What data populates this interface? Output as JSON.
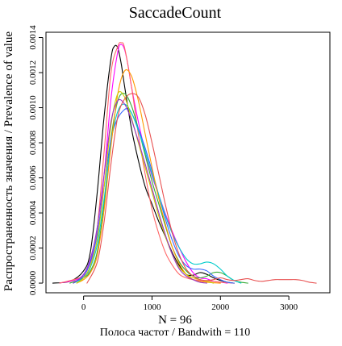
{
  "chart_data": {
    "type": "line",
    "title": "SaccadeCount",
    "xlabel": "N = 96",
    "xlabel_sub": "Полоса частот / Bandwith = 110",
    "ylabel": "Распространенность значения / Prevalence of value",
    "xlim": [
      -550,
      3600
    ],
    "ylim": [
      -5.5e-05,
      0.00143
    ],
    "x_ticks": [
      0,
      1000,
      2000,
      3000
    ],
    "x_tick_labels": [
      "0",
      "1000",
      "2000",
      "3000"
    ],
    "y_ticks": [
      0.0,
      0.0002,
      0.0004,
      0.0006,
      0.0008,
      0.001,
      0.0012,
      0.0014
    ],
    "y_tick_labels": [
      "0.0000",
      "0.0002",
      "0.0004",
      "0.0006",
      "0.0008",
      "0.0010",
      "0.0012",
      "0.0014"
    ],
    "grid": false,
    "legend": "none",
    "series": [
      {
        "color": "#000000",
        "x": [
          -450,
          -200,
          0,
          100,
          200,
          300,
          400,
          450,
          500,
          550,
          600,
          700,
          800,
          900,
          1000,
          1100,
          1200,
          1300,
          1400,
          1500,
          1600,
          1700,
          1800,
          1900,
          2000,
          2100,
          2200
        ],
        "y": [
          0,
          1e-05,
          7e-05,
          0.00018,
          0.00052,
          0.00095,
          0.00128,
          0.00135,
          0.00134,
          0.00125,
          0.00112,
          0.00088,
          0.0007,
          0.00055,
          0.00045,
          0.00035,
          0.00026,
          0.00017,
          0.0001,
          5e-05,
          4.5e-05,
          6e-05,
          5e-05,
          3e-05,
          1.5e-05,
          5e-06,
          0
        ]
      },
      {
        "color": "#ff00ff",
        "x": [
          -350,
          0,
          200,
          300,
          400,
          500,
          550,
          600,
          650,
          700,
          800,
          900,
          1000,
          1100,
          1200,
          1300,
          1400,
          1500,
          1600,
          1700,
          1800,
          1900,
          2000,
          2100
        ],
        "y": [
          0,
          5e-05,
          0.00028,
          0.00062,
          0.00105,
          0.00132,
          0.00136,
          0.00133,
          0.00124,
          0.00112,
          0.00092,
          0.00075,
          0.00061,
          0.0005,
          0.00039,
          0.00029,
          0.0002,
          0.00012,
          6e-05,
          3e-05,
          2.5e-05,
          1e-05,
          5e-06,
          0
        ]
      },
      {
        "color": "#ff6666",
        "x": [
          -350,
          0,
          100,
          200,
          300,
          400,
          500,
          550,
          600,
          700,
          800,
          900,
          1000,
          1100,
          1200,
          1300,
          1400,
          1500,
          1600,
          1700,
          1800,
          1900,
          2000,
          2100,
          2200
        ],
        "y": [
          0,
          4e-05,
          0.0001,
          0.00032,
          0.00075,
          0.0012,
          0.00135,
          0.00137,
          0.00134,
          0.00112,
          0.00085,
          0.00062,
          0.00042,
          0.00028,
          0.00017,
          0.0001,
          5e-05,
          3e-05,
          2e-05,
          1.5e-05,
          1e-05,
          1e-05,
          5e-06,
          2e-06,
          0
        ]
      },
      {
        "color": "#33aa33",
        "x": [
          -200,
          0,
          100,
          200,
          300,
          400,
          500,
          600,
          700,
          800,
          900,
          1000,
          1100,
          1200,
          1300,
          1400,
          1500,
          1600,
          1700,
          1800,
          1900,
          2000,
          2100,
          2200,
          2300,
          2400
        ],
        "y": [
          0,
          3e-05,
          7e-05,
          0.00018,
          0.00045,
          0.00082,
          0.00104,
          0.00108,
          0.00101,
          0.00088,
          0.00073,
          0.00058,
          0.00045,
          0.00032,
          0.0002,
          0.00012,
          7e-05,
          4e-05,
          3e-05,
          4e-05,
          6e-05,
          6e-05,
          4e-05,
          1.5e-05,
          5e-06,
          0
        ]
      },
      {
        "color": "#3366ff",
        "x": [
          -150,
          0,
          100,
          200,
          300,
          400,
          500,
          600,
          650,
          700,
          800,
          900,
          1000,
          1100,
          1200,
          1300,
          1400,
          1500,
          1600,
          1700,
          1800,
          1900,
          2000,
          2100,
          2200
        ],
        "y": [
          0,
          4e-05,
          0.00012,
          0.00028,
          0.00055,
          0.00082,
          0.00094,
          0.00099,
          0.00099,
          0.00097,
          0.00088,
          0.00077,
          0.00064,
          0.0005,
          0.00036,
          0.00024,
          0.00015,
          0.0001,
          8e-05,
          8e-05,
          7e-05,
          4e-05,
          2e-05,
          5e-06,
          0
        ]
      },
      {
        "color": "#00cccc",
        "x": [
          -150,
          0,
          100,
          200,
          300,
          400,
          500,
          600,
          700,
          800,
          900,
          1000,
          1100,
          1200,
          1300,
          1400,
          1500,
          1600,
          1700,
          1800,
          1900,
          2000,
          2100,
          2200,
          2300
        ],
        "y": [
          0,
          3e-05,
          9e-05,
          0.00022,
          0.00048,
          0.0008,
          0.00098,
          0.00102,
          0.00097,
          0.00087,
          0.00075,
          0.00062,
          0.0005,
          0.00038,
          0.00028,
          0.0002,
          0.00014,
          0.00011,
          0.00011,
          0.00012,
          0.00011,
          8e-05,
          4e-05,
          1.5e-05,
          0
        ]
      },
      {
        "color": "#ff9900",
        "x": [
          -100,
          0,
          100,
          200,
          300,
          400,
          500,
          600,
          700,
          800,
          900,
          1000,
          1100,
          1200,
          1300,
          1400,
          1500,
          1600,
          1700,
          1800,
          1900,
          2000
        ],
        "y": [
          0,
          2e-05,
          6e-05,
          0.00016,
          0.00042,
          0.00078,
          0.00108,
          0.00121,
          0.00118,
          0.00104,
          0.00085,
          0.00066,
          0.00048,
          0.00033,
          0.0002,
          0.00011,
          5e-05,
          2e-05,
          1e-05,
          5e-06,
          2e-06,
          0
        ]
      },
      {
        "color": "#cccc00",
        "x": [
          -100,
          0,
          100,
          200,
          300,
          400,
          500,
          600,
          700,
          800,
          900,
          1000,
          1100,
          1200,
          1300,
          1400,
          1500,
          1600,
          1700,
          1800,
          1900
        ],
        "y": [
          0,
          3e-05,
          0.0001,
          0.00025,
          0.00055,
          0.0009,
          0.00108,
          0.00106,
          0.00094,
          0.0008,
          0.00066,
          0.00052,
          0.00038,
          0.00026,
          0.00016,
          9e-05,
          5e-05,
          3e-05,
          2e-05,
          1e-05,
          0
        ]
      },
      {
        "color": "#9933cc",
        "x": [
          -150,
          0,
          100,
          200,
          300,
          400,
          500,
          600,
          700,
          800,
          900,
          1000,
          1100,
          1200,
          1300,
          1400,
          1500,
          1600,
          1700,
          1800
        ],
        "y": [
          0,
          5e-05,
          0.00014,
          0.00032,
          0.00062,
          0.00092,
          0.00104,
          0.00102,
          0.00093,
          0.00081,
          0.00068,
          0.00054,
          0.0004,
          0.00027,
          0.00016,
          8e-05,
          4e-05,
          2e-05,
          5e-06,
          0
        ]
      },
      {
        "color": "#e85050",
        "x": [
          50,
          200,
          300,
          400,
          500,
          600,
          700,
          800,
          900,
          1000,
          1100,
          1200,
          1300,
          1400,
          1500,
          1600,
          1700,
          1800,
          1900,
          2000,
          2100,
          2200,
          2300,
          2400,
          2500,
          2600,
          2700,
          2800,
          2900,
          3000,
          3100,
          3200,
          3300,
          3400
        ],
        "y": [
          0,
          0.00012,
          0.00035,
          0.00068,
          0.00095,
          0.00105,
          0.00108,
          0.00106,
          0.00096,
          0.0008,
          0.00062,
          0.00044,
          0.00028,
          0.00016,
          8e-05,
          4e-05,
          2e-05,
          1.5e-05,
          2e-05,
          3e-05,
          2e-05,
          1.5e-05,
          2e-05,
          2.5e-05,
          1.5e-05,
          1e-05,
          1.5e-05,
          2e-05,
          2e-05,
          2e-05,
          2e-05,
          1.5e-05,
          5e-06,
          0
        ]
      }
    ]
  }
}
